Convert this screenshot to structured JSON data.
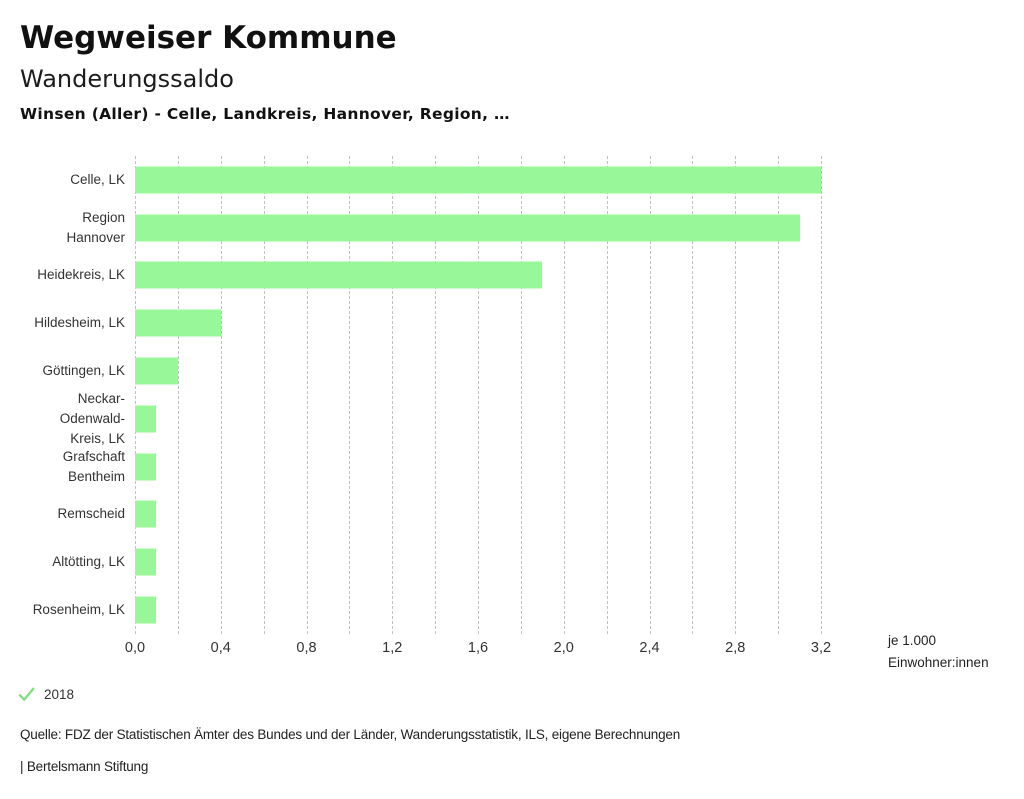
{
  "header": {
    "app_title": "Wegweiser Kommune",
    "chart_title": "Wanderungssaldo",
    "subtitle": "Winsen (Aller) - Celle, Landkreis, Hannover, Region, …"
  },
  "chart_data": {
    "type": "bar",
    "orientation": "horizontal",
    "title": "Wanderungssaldo",
    "subtitle": "Winsen (Aller) - Celle, Landkreis, Hannover, Region, …",
    "xlabel": "je 1.000 Einwohner:innen",
    "ylabel": "",
    "categories": [
      "Celle, LK",
      "Region Hannover",
      "Heidekreis, LK",
      "Hildesheim, LK",
      "Göttingen, LK",
      "Neckar-Odenwald-Kreis, LK",
      "Grafschaft Bentheim",
      "Remscheid",
      "Altötting, LK",
      "Rosenheim, LK"
    ],
    "label_lines": [
      [
        "Celle, LK"
      ],
      [
        "Region",
        "Hannover"
      ],
      [
        "Heidekreis, LK"
      ],
      [
        "Hildesheim, LK"
      ],
      [
        "Göttingen, LK"
      ],
      [
        "Neckar-",
        "Odenwald-",
        "Kreis, LK"
      ],
      [
        "Grafschaft",
        "Bentheim"
      ],
      [
        "Remscheid"
      ],
      [
        "Altötting, LK"
      ],
      [
        "Rosenheim, LK"
      ]
    ],
    "series": [
      {
        "name": "2018",
        "values": [
          3.2,
          3.1,
          1.9,
          0.4,
          0.2,
          0.1,
          0.1,
          0.1,
          0.1,
          0.1
        ]
      }
    ],
    "xlim": [
      0,
      3.2
    ],
    "grid_step": 0.2,
    "tick_values": [
      0,
      0.4,
      0.8,
      1.2,
      1.6,
      2.0,
      2.4,
      2.8,
      3.2
    ],
    "tick_labels": [
      "0,0",
      "0,4",
      "0,8",
      "1,2",
      "1,6",
      "2,0",
      "2,4",
      "2,8",
      "3,2"
    ],
    "grid": true,
    "legend_position": "bottom-left",
    "bar_color": "#98f798",
    "grid_color": "#bfbfbf"
  },
  "axis_note": {
    "line1": "je 1.000",
    "line2": "Einwohner:innen"
  },
  "legend": {
    "year": "2018",
    "checkmark_icon": "check",
    "check_color": "#82e082"
  },
  "footer": {
    "source": "Quelle: FDZ der Statistischen Ämter des Bundes und der Länder, Wanderungsstatistik, ILS, eigene Berechnungen",
    "brand": "| Bertelsmann Stiftung"
  }
}
